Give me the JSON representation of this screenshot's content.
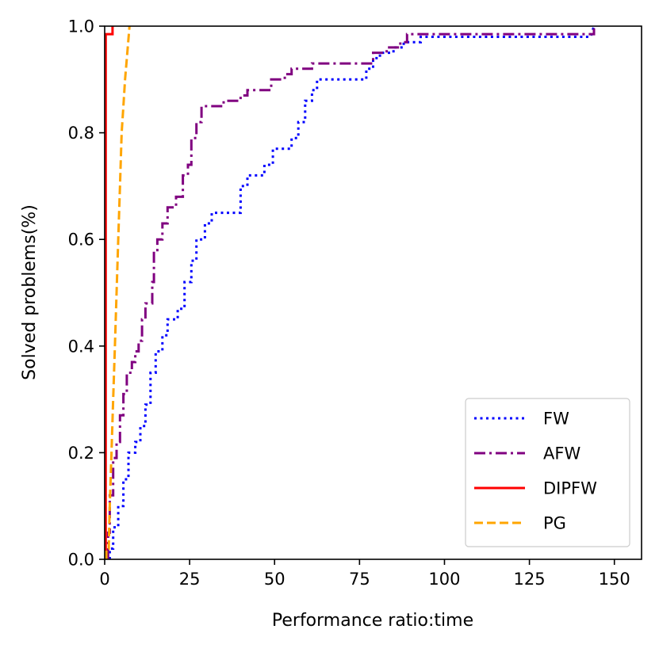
{
  "chart_data": {
    "type": "line",
    "title": "",
    "xlabel": "Performance ratio:time",
    "ylabel": "Solved problems(%)",
    "xlim": [
      0,
      158
    ],
    "ylim": [
      0.0,
      1.0
    ],
    "xticks": [
      0,
      25,
      50,
      75,
      100,
      125,
      150
    ],
    "xtick_labels": [
      "0",
      "25",
      "50",
      "75",
      "100",
      "125",
      "150"
    ],
    "yticks": [
      0.0,
      0.2,
      0.4,
      0.6,
      0.8,
      1.0
    ],
    "ytick_labels": [
      "0.0",
      "0.2",
      "0.4",
      "0.6",
      "0.8",
      "1.0"
    ],
    "legend_position": "bottom-right",
    "series": [
      {
        "name": "FW",
        "color": "#0000ff",
        "style": "dotted",
        "points": [
          [
            1.5,
            0.0
          ],
          [
            1.5,
            0.02
          ],
          [
            2.5,
            0.02
          ],
          [
            2.5,
            0.06
          ],
          [
            4,
            0.06
          ],
          [
            4,
            0.1
          ],
          [
            5.5,
            0.1
          ],
          [
            5.5,
            0.15
          ],
          [
            7,
            0.15
          ],
          [
            7,
            0.2
          ],
          [
            9,
            0.2
          ],
          [
            9,
            0.22
          ],
          [
            10.5,
            0.22
          ],
          [
            10.5,
            0.25
          ],
          [
            12,
            0.25
          ],
          [
            12,
            0.29
          ],
          [
            13.5,
            0.29
          ],
          [
            13.5,
            0.35
          ],
          [
            15,
            0.35
          ],
          [
            15,
            0.39
          ],
          [
            17,
            0.39
          ],
          [
            17,
            0.42
          ],
          [
            18.5,
            0.42
          ],
          [
            18.5,
            0.45
          ],
          [
            21.5,
            0.45
          ],
          [
            21.5,
            0.47
          ],
          [
            23.5,
            0.47
          ],
          [
            23.5,
            0.52
          ],
          [
            25.5,
            0.52
          ],
          [
            25.5,
            0.56
          ],
          [
            27,
            0.56
          ],
          [
            27,
            0.6
          ],
          [
            29.5,
            0.6
          ],
          [
            29.5,
            0.63
          ],
          [
            31.5,
            0.63
          ],
          [
            31.5,
            0.65
          ],
          [
            40,
            0.65
          ],
          [
            40,
            0.7
          ],
          [
            42,
            0.7
          ],
          [
            42,
            0.72
          ],
          [
            47,
            0.72
          ],
          [
            47,
            0.74
          ],
          [
            49.5,
            0.74
          ],
          [
            49.5,
            0.77
          ],
          [
            55,
            0.77
          ],
          [
            55,
            0.79
          ],
          [
            57,
            0.79
          ],
          [
            57,
            0.82
          ],
          [
            59,
            0.82
          ],
          [
            59,
            0.86
          ],
          [
            61,
            0.86
          ],
          [
            61,
            0.88
          ],
          [
            62.5,
            0.88
          ],
          [
            62.5,
            0.9
          ],
          [
            77,
            0.9
          ],
          [
            77,
            0.92
          ],
          [
            79,
            0.92
          ],
          [
            79,
            0.94
          ],
          [
            81,
            0.94
          ],
          [
            81,
            0.95
          ],
          [
            85,
            0.95
          ],
          [
            85,
            0.96
          ],
          [
            88,
            0.96
          ],
          [
            88,
            0.97
          ],
          [
            93,
            0.97
          ],
          [
            93,
            0.98
          ],
          [
            100,
            0.98
          ],
          [
            143,
            0.98
          ],
          [
            144,
            1.0
          ]
        ]
      },
      {
        "name": "AFW",
        "color": "#800080",
        "style": "dashdot",
        "points": [
          [
            1.0,
            0.0
          ],
          [
            1.0,
            0.05
          ],
          [
            1.5,
            0.05
          ],
          [
            1.5,
            0.12
          ],
          [
            2.5,
            0.12
          ],
          [
            2.5,
            0.19
          ],
          [
            3.5,
            0.19
          ],
          [
            3.5,
            0.22
          ],
          [
            4.5,
            0.22
          ],
          [
            4.5,
            0.27
          ],
          [
            5.5,
            0.27
          ],
          [
            5.5,
            0.31
          ],
          [
            6.5,
            0.31
          ],
          [
            6.5,
            0.35
          ],
          [
            8,
            0.35
          ],
          [
            8,
            0.37
          ],
          [
            9,
            0.37
          ],
          [
            9,
            0.39
          ],
          [
            10,
            0.39
          ],
          [
            10,
            0.41
          ],
          [
            11,
            0.41
          ],
          [
            11,
            0.45
          ],
          [
            12,
            0.45
          ],
          [
            12,
            0.48
          ],
          [
            14,
            0.48
          ],
          [
            14,
            0.52
          ],
          [
            14.5,
            0.52
          ],
          [
            14.5,
            0.58
          ],
          [
            15.5,
            0.58
          ],
          [
            15.5,
            0.6
          ],
          [
            17,
            0.6
          ],
          [
            17,
            0.63
          ],
          [
            18.5,
            0.63
          ],
          [
            18.5,
            0.66
          ],
          [
            21,
            0.66
          ],
          [
            21,
            0.68
          ],
          [
            23,
            0.68
          ],
          [
            23,
            0.72
          ],
          [
            24.5,
            0.72
          ],
          [
            24.5,
            0.74
          ],
          [
            25.5,
            0.74
          ],
          [
            25.5,
            0.79
          ],
          [
            27,
            0.79
          ],
          [
            27,
            0.82
          ],
          [
            28.5,
            0.82
          ],
          [
            28.5,
            0.85
          ],
          [
            35,
            0.85
          ],
          [
            35,
            0.86
          ],
          [
            40,
            0.86
          ],
          [
            40,
            0.87
          ],
          [
            42,
            0.87
          ],
          [
            42,
            0.88
          ],
          [
            49,
            0.88
          ],
          [
            49,
            0.9
          ],
          [
            53,
            0.9
          ],
          [
            53,
            0.91
          ],
          [
            55,
            0.91
          ],
          [
            55,
            0.92
          ],
          [
            61,
            0.92
          ],
          [
            61,
            0.93
          ],
          [
            79,
            0.93
          ],
          [
            79,
            0.95
          ],
          [
            83,
            0.95
          ],
          [
            83,
            0.96
          ],
          [
            87,
            0.96
          ],
          [
            87,
            0.97
          ],
          [
            89,
            0.97
          ],
          [
            89,
            0.985
          ],
          [
            144,
            0.985
          ],
          [
            144,
            1.0
          ]
        ]
      },
      {
        "name": "DIPFW",
        "color": "#ff0000",
        "style": "solid",
        "points": [
          [
            0.3,
            0.0
          ],
          [
            0.3,
            0.985
          ],
          [
            2.3,
            0.985
          ],
          [
            2.3,
            1.0
          ]
        ]
      },
      {
        "name": "PG",
        "color": "#ffa500",
        "style": "dashed",
        "points": [
          [
            0.5,
            0.0
          ],
          [
            0.5,
            0.02
          ],
          [
            1.2,
            0.02
          ],
          [
            1.5,
            0.1
          ],
          [
            2.0,
            0.2
          ],
          [
            2.5,
            0.3
          ],
          [
            3.0,
            0.4
          ],
          [
            3.5,
            0.5
          ],
          [
            4.0,
            0.6
          ],
          [
            4.5,
            0.7
          ],
          [
            5.0,
            0.8
          ],
          [
            5.5,
            0.85
          ],
          [
            6.0,
            0.9
          ],
          [
            6.8,
            0.96
          ],
          [
            7.3,
            1.0
          ]
        ]
      }
    ]
  }
}
